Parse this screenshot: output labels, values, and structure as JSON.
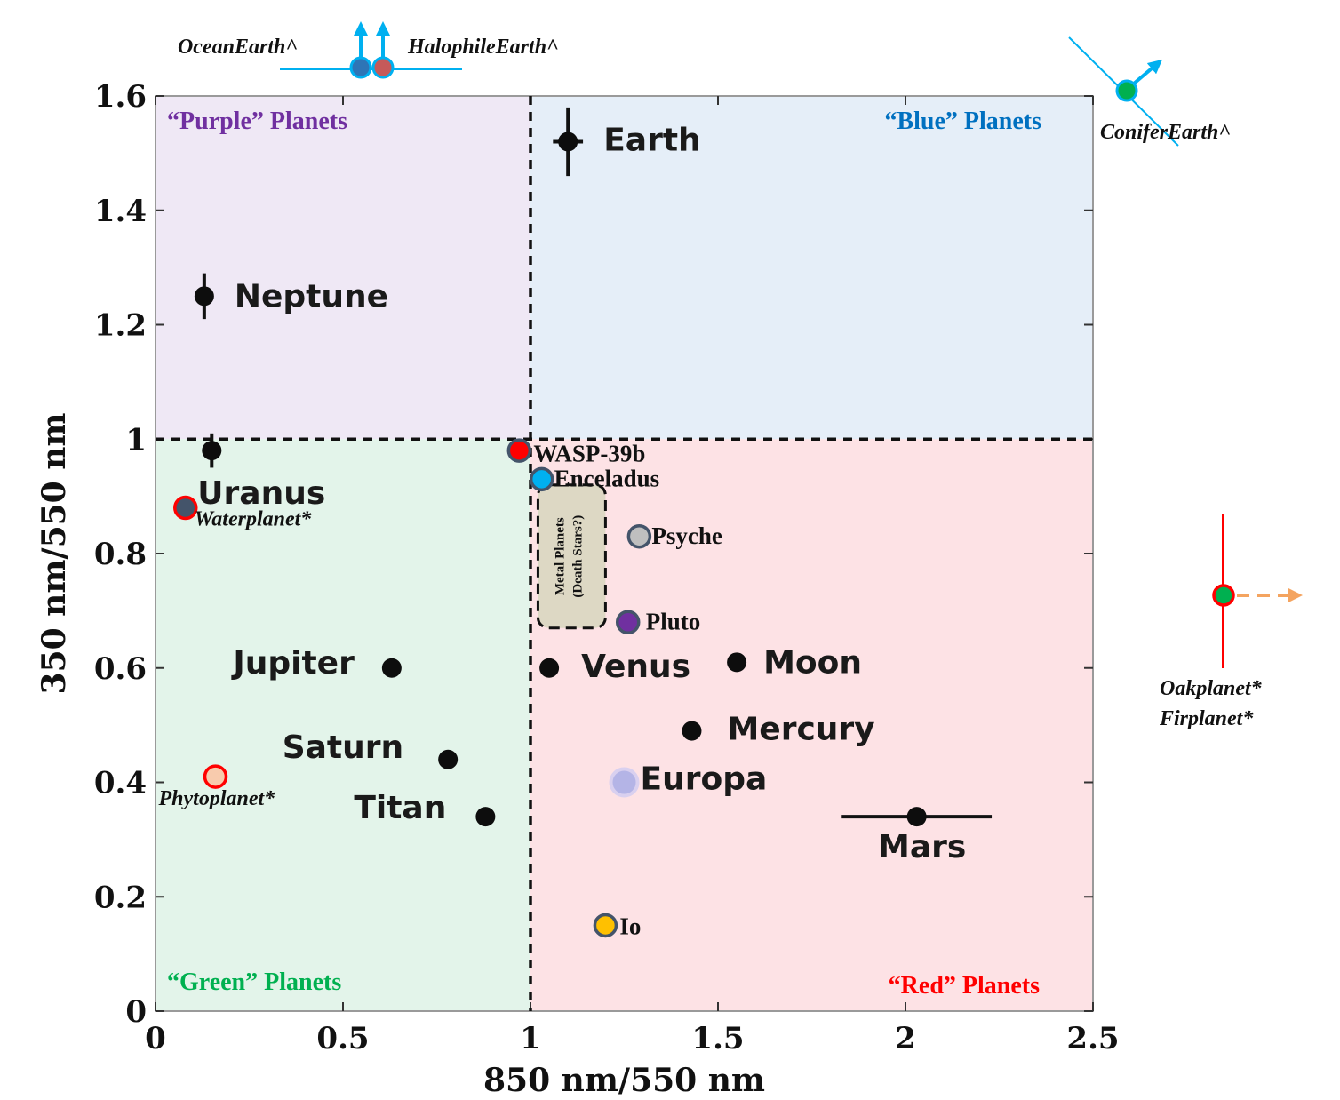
{
  "chart_data": {
    "type": "scatter",
    "title": "",
    "xlabel": "850 nm/550 nm",
    "ylabel": "350 nm/550 nm",
    "xlim": [
      0,
      2.5
    ],
    "ylim": [
      0,
      1.6
    ],
    "x_ticks": [
      "0",
      "0.5",
      "1",
      "1.5",
      "2",
      "2.5"
    ],
    "y_ticks": [
      "0",
      "0.2",
      "0.4",
      "0.6",
      "0.8",
      "1",
      "1.2",
      "1.4",
      "1.6"
    ],
    "x_tick_values": [
      0,
      0.5,
      1,
      1.5,
      2,
      2.5
    ],
    "y_tick_values": [
      0,
      0.2,
      0.4,
      0.6,
      0.8,
      1.0,
      1.2,
      1.4,
      1.6
    ],
    "dividers": {
      "x": 1.0,
      "y": 1.0
    },
    "quadrants": [
      {
        "label": "“Purple” Planets",
        "text_color": "#7030a0",
        "fill": "#efe8f5",
        "x": [
          0,
          1
        ],
        "y": [
          1,
          1.6
        ]
      },
      {
        "label": "“Blue” Planets",
        "text_color": "#0070c0",
        "fill": "#e5eef8",
        "x": [
          1,
          2.5
        ],
        "y": [
          1,
          1.6
        ]
      },
      {
        "label": "“Green” Planets",
        "text_color": "#00b050",
        "fill": "#e3f4ea",
        "x": [
          0,
          1
        ],
        "y": [
          0,
          1
        ]
      },
      {
        "label": "“Red” Planets",
        "text_color": "#ff0000",
        "fill": "#fde2e5",
        "x": [
          1,
          2.5
        ],
        "y": [
          0,
          1
        ]
      }
    ],
    "measured": [
      {
        "name": "Earth",
        "x": 1.1,
        "y": 1.52,
        "xerr": 0.04,
        "yerr": 0.06
      },
      {
        "name": "Neptune",
        "x": 0.13,
        "y": 1.25,
        "xerr": 0.0,
        "yerr": 0.04
      },
      {
        "name": "Uranus",
        "x": 0.15,
        "y": 0.98,
        "xerr": 0.0,
        "yerr": 0.03
      },
      {
        "name": "Jupiter",
        "x": 0.63,
        "y": 0.6,
        "xerr": 0.0,
        "yerr": 0.0
      },
      {
        "name": "Saturn",
        "x": 0.78,
        "y": 0.44,
        "xerr": 0.0,
        "yerr": 0.0
      },
      {
        "name": "Titan",
        "x": 0.88,
        "y": 0.34,
        "xerr": 0.0,
        "yerr": 0.0
      },
      {
        "name": "Venus",
        "x": 1.05,
        "y": 0.6,
        "xerr": 0.0,
        "yerr": 0.0
      },
      {
        "name": "Moon",
        "x": 1.55,
        "y": 0.61,
        "xerr": 0.0,
        "yerr": 0.0
      },
      {
        "name": "Mercury",
        "x": 1.43,
        "y": 0.49,
        "xerr": 0.0,
        "yerr": 0.0
      },
      {
        "name": "Mars",
        "x": 2.03,
        "y": 0.34,
        "xerr": 0.2,
        "yerr": 0.0
      }
    ],
    "added_points": [
      {
        "name": "WASP-39b",
        "x": 0.97,
        "y": 0.98,
        "fill": "#ff0000",
        "stroke": "#44546a"
      },
      {
        "name": "Enceladus",
        "x": 1.03,
        "y": 0.93,
        "fill": "#00b0f0",
        "stroke": "#44546a"
      },
      {
        "name": "Psyche",
        "x": 1.29,
        "y": 0.83,
        "fill": "#bfbfbf",
        "stroke": "#44546a"
      },
      {
        "name": "Pluto",
        "x": 1.26,
        "y": 0.68,
        "fill": "#7030a0",
        "stroke": "#44546a"
      },
      {
        "name": "Europa",
        "x": 1.25,
        "y": 0.4,
        "fill": "#b4b4e6",
        "stroke": "#d9d0ef"
      },
      {
        "name": "Io",
        "x": 1.2,
        "y": 0.15,
        "fill": "#ffc000",
        "stroke": "#44546a"
      }
    ],
    "model_points": [
      {
        "name": "Waterplanet*",
        "x": 0.08,
        "y": 0.88,
        "fill": "#44546a",
        "stroke": "#ff0000"
      },
      {
        "name": "Phytoplanet*",
        "x": 0.16,
        "y": 0.41,
        "fill": "#f8cbad",
        "stroke": "#ff0000"
      }
    ],
    "off_chart_points": [
      {
        "name": "OceanEarth^",
        "fill": "#2e75b6",
        "stroke": "#00b0f0",
        "arrow": "up"
      },
      {
        "name": "HalophileEarth^",
        "fill": "#c55a5a",
        "stroke": "#00b0f0",
        "arrow": "up"
      },
      {
        "name": "ConiferEarth^",
        "fill": "#00b050",
        "stroke": "#00b0f0",
        "arrow": "up-right"
      },
      {
        "name": "Oakplanet*",
        "fill": "#00b050",
        "stroke": "#ff0000",
        "arrow": "right"
      },
      {
        "name": "Firplanet*",
        "fill": "#00b050",
        "stroke": "#ff0000",
        "arrow": "right"
      }
    ],
    "metal_box": {
      "x": [
        1.02,
        1.2
      ],
      "y": [
        0.67,
        0.92
      ],
      "line1": "Metal Planets",
      "line2": "(Death Stars?)",
      "fill": "#ddd8c4"
    }
  }
}
